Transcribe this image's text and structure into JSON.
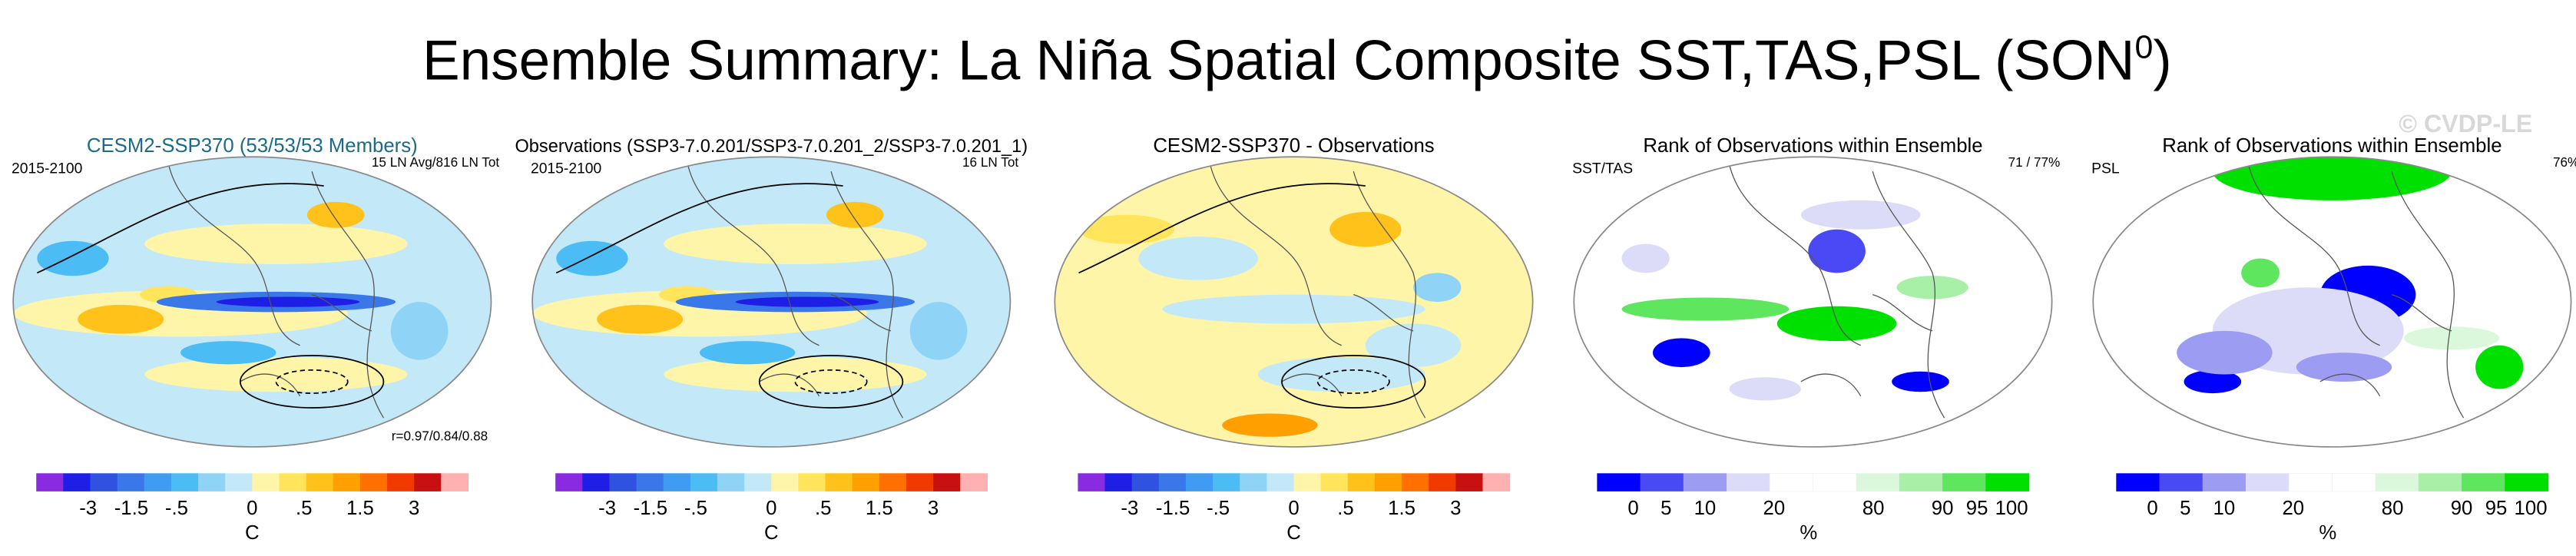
{
  "header": {
    "title": "Ensemble Summary: La Niña Spatial Composite SST,TAS,PSL (SON",
    "superscript": "0",
    "close": ")",
    "watermark": "© CVDP-LE"
  },
  "panels": [
    {
      "title": "CESM2-SSP370 (53/53/53 Members)",
      "left": "2015-2100",
      "right": "15 LN Avg/816 LN Tot",
      "bottom": "r=0.97/0.84/0.88",
      "kind": "anomaly",
      "scale": 0
    },
    {
      "title": "Observations (SSP3-7.0.201/SSP3-7.0.201_2/SSP3-7.0.201_1)",
      "left": "2015-2100",
      "right": "16 LN Tot",
      "kind": "anomaly",
      "scale": 0
    },
    {
      "title": "CESM2-SSP370 - Observations",
      "kind": "difference",
      "scale": 0
    },
    {
      "title": "Rank of Observations within Ensemble",
      "left": "SST/TAS",
      "right": "71 / 77%",
      "kind": "rank",
      "scale": 1
    },
    {
      "title": "Rank of Observations within Ensemble",
      "left": "PSL",
      "right": "76%",
      "kind": "rank-psl",
      "scale": 1
    }
  ],
  "colorbars": [
    {
      "labels": [
        "-3",
        "-1.5",
        "-.5",
        "0",
        ".5",
        "1.5",
        "3"
      ],
      "unit": "C",
      "colors": [
        "#8a2be2",
        "#1e1ee6",
        "#2f52e0",
        "#3a78ea",
        "#3f9cf2",
        "#4cbcf5",
        "#8fd4f6",
        "#c3e8f8",
        "#fff5a8",
        "#ffe45c",
        "#ffc21a",
        "#ffa000",
        "#ff7000",
        "#f23a00",
        "#c81010",
        "#ffb0b0"
      ]
    },
    {
      "labels": [
        "0",
        "5",
        "10",
        "20",
        "80",
        "90",
        "95",
        "100"
      ],
      "unit": "%",
      "colors": [
        "#0000ff",
        "#4a4af5",
        "#9c9cf2",
        "#dcdcf8",
        "#ffffff",
        "#ffffff",
        "#dcf8dc",
        "#a8f0a8",
        "#5ee65e",
        "#00e000"
      ]
    }
  ]
}
